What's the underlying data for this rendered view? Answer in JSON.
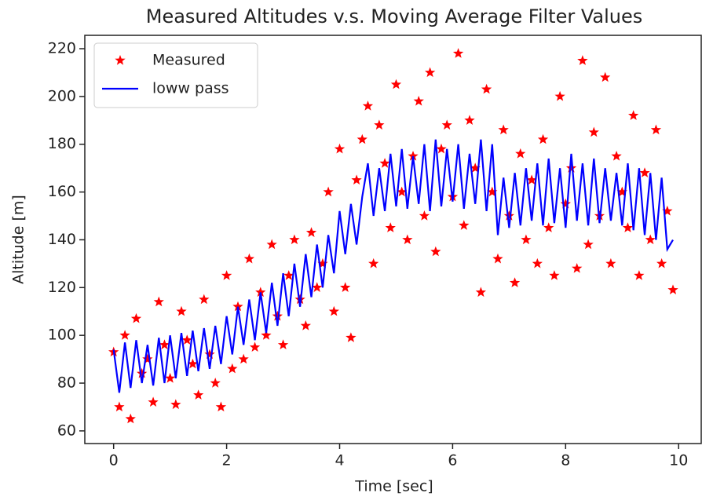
{
  "chart_data": {
    "type": "line_scatter",
    "title": "Measured Altitudes v.s. Moving Average Filter Values",
    "x_label": "Time [sec]",
    "y_label": "Altitude [m]",
    "xlim": [
      -0.51,
      10.4
    ],
    "ylim": [
      54.7,
      225.6
    ],
    "xticks": [
      0,
      2,
      4,
      6,
      8,
      10
    ],
    "yticks": [
      60,
      80,
      100,
      120,
      140,
      160,
      180,
      200,
      220
    ],
    "legend": "upper left",
    "x": [
      0,
      0.1,
      0.2,
      0.3,
      0.4,
      0.5,
      0.6,
      0.7,
      0.8,
      0.9,
      1,
      1.1,
      1.2,
      1.3,
      1.4,
      1.5,
      1.6,
      1.7,
      1.8,
      1.9,
      2,
      2.1,
      2.2,
      2.3,
      2.4,
      2.5,
      2.6,
      2.7,
      2.8,
      2.9,
      3,
      3.1,
      3.2,
      3.3,
      3.4,
      3.5,
      3.6,
      3.7,
      3.8,
      3.9,
      4,
      4.1,
      4.2,
      4.3,
      4.4,
      4.5,
      4.6,
      4.7,
      4.8,
      4.9,
      5,
      5.1,
      5.2,
      5.3,
      5.4,
      5.5,
      5.6,
      5.7,
      5.8,
      5.9,
      6,
      6.1,
      6.2,
      6.3,
      6.4,
      6.5,
      6.6,
      6.7,
      6.8,
      6.9,
      7,
      7.1,
      7.2,
      7.3,
      7.4,
      7.5,
      7.6,
      7.7,
      7.8,
      7.9,
      8,
      8.1,
      8.2,
      8.3,
      8.4,
      8.5,
      8.6,
      8.7,
      8.8,
      8.9,
      9,
      9.1,
      9.2,
      9.3,
      9.4,
      9.5,
      9.6,
      9.7,
      9.8,
      9.9
    ],
    "series": [
      {
        "name": "Measured",
        "kind": "scatter",
        "color": "#ff0000",
        "values": [
          93,
          70,
          100,
          65,
          107,
          84,
          90,
          72,
          114,
          96,
          82,
          71,
          110,
          98,
          88,
          75,
          115,
          92,
          80,
          70,
          125,
          86,
          112,
          90,
          132,
          95,
          118,
          100,
          138,
          108,
          96,
          125,
          140,
          115,
          104,
          143,
          120,
          130,
          160,
          110,
          178,
          120,
          99,
          165,
          182,
          196,
          130,
          188,
          172,
          145,
          205,
          160,
          140,
          175,
          198,
          150,
          210,
          135,
          178,
          188,
          158,
          218,
          146,
          190,
          170,
          118,
          203,
          160,
          132,
          186,
          150,
          122,
          176,
          140,
          165,
          130,
          182,
          145,
          125,
          200,
          155,
          170,
          128,
          215,
          138,
          185,
          150,
          208,
          130,
          175,
          160,
          145,
          192,
          125,
          168,
          140,
          186,
          130,
          152,
          119
        ]
      },
      {
        "name": "loww pass",
        "kind": "line",
        "color": "#0000ff",
        "values": [
          94,
          76,
          97,
          78,
          98,
          80,
          96,
          79,
          99,
          80,
          100,
          82,
          101,
          83,
          102,
          85,
          103,
          86,
          104,
          88,
          108,
          92,
          112,
          96,
          115,
          98,
          118,
          101,
          122,
          104,
          126,
          108,
          130,
          112,
          134,
          116,
          138,
          120,
          142,
          126,
          152,
          134,
          155,
          138,
          158,
          172,
          150,
          170,
          152,
          176,
          154,
          178,
          153,
          175,
          155,
          180,
          152,
          182,
          154,
          178,
          156,
          180,
          153,
          176,
          155,
          182,
          152,
          180,
          142,
          166,
          145,
          168,
          146,
          170,
          148,
          172,
          146,
          174,
          147,
          170,
          145,
          176,
          148,
          172,
          146,
          174,
          147,
          170,
          148,
          168,
          146,
          172,
          144,
          170,
          142,
          168,
          140,
          166,
          136,
          140
        ]
      }
    ]
  }
}
